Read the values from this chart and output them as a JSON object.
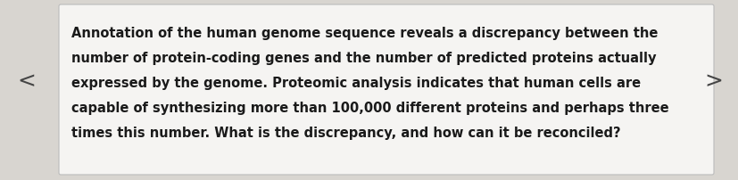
{
  "lines": [
    "Annotation of the human genome sequence reveals a discrepancy between the",
    "number of protein-coding genes and the number of predicted proteins actually",
    "expressed by the genome. Proteomic analysis indicates that human cells are",
    "capable of synthesizing more than 100,000 different proteins and perhaps three",
    "times this number. What is the discrepancy, and how can it be reconciled?"
  ],
  "background_color": "#d8d5d0",
  "box_color": "#f5f4f2",
  "text_color": "#1a1a1a",
  "arrow_color": "#444444",
  "font_size": 10.5,
  "arrow_font_size": 18,
  "left_arrow": "<",
  "right_arrow": ">",
  "fig_width": 8.28,
  "fig_height": 2.03,
  "dpi": 100
}
